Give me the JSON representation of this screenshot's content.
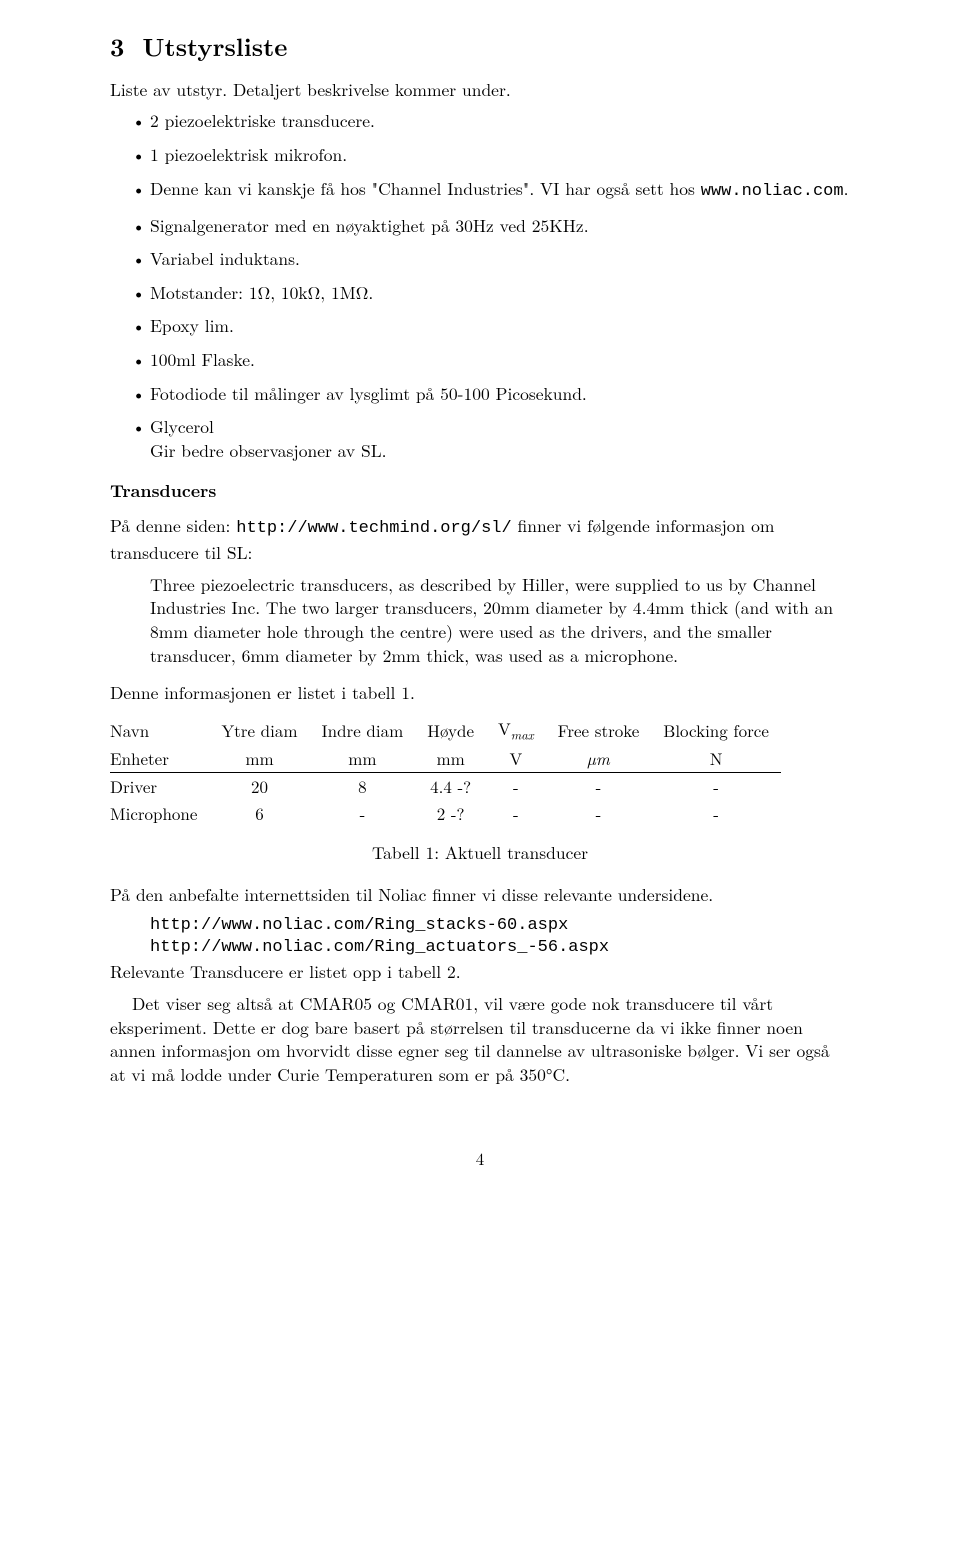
{
  "section": {
    "number": "3",
    "title": "Utstyrsliste"
  },
  "intro": "Liste av utstyr. Detaljert beskrivelse kommer under.",
  "bullets": [
    {
      "text": "2 piezoelektriske transducere."
    },
    {
      "text": "1 piezoelektrisk mikrofon."
    },
    {
      "text_a": "Denne kan vi kanskje få hos \"Channel Industries\". VI har også sett hos ",
      "code": "www.noliac.com",
      "text_b": "."
    },
    {
      "text": "Signalgenerator med en nøyaktighet på 30Hz ved 25KHz."
    },
    {
      "text": "Variabel induktans."
    },
    {
      "text": "Motstander: 1Ω, 10kΩ, 1MΩ."
    },
    {
      "text": "Epoxy lim."
    },
    {
      "text": "100ml Flaske."
    },
    {
      "text": "Fotodiode til målinger av lysglimt på 50-100 Picosekund."
    },
    {
      "text": "Glycerol",
      "sub": "Gir bedre observasjoner av SL."
    }
  ],
  "transducers": {
    "heading": "Transducers",
    "p1_a": "På denne siden: ",
    "p1_code": "http://www.techmind.org/sl/",
    "p1_b": " finner vi følgende informasjon om transducere til SL:",
    "quote": "Three piezoelectric transducers, as described by Hiller, were supplied to us by Channel Industries Inc. The two larger transducers, 20mm diameter by 4.4mm thick (and with an 8mm diameter hole through the centre) were used as the drivers, and the smaller transducer, 6mm diameter by 2mm thick, was used as a microphone.",
    "p2": "Denne informasjonen er listet i tabell 1."
  },
  "table": {
    "headers": [
      "Navn",
      "Ytre diam",
      "Indre diam",
      "Høyde",
      "V",
      "Free stroke",
      "Blocking force"
    ],
    "header_vmax_label": "max",
    "units": [
      "Enheter",
      "mm",
      "mm",
      "mm",
      "V",
      "µm",
      "N"
    ],
    "rows": [
      [
        "Driver",
        "20",
        "8",
        "4.4 -?",
        "-",
        "-",
        "-"
      ],
      [
        "Microphone",
        "6",
        "-",
        "2 -?",
        "-",
        "-",
        "-"
      ]
    ],
    "caption": "Tabell 1: Aktuell transducer"
  },
  "after": {
    "p1": "På den anbefalte internettsiden til Noliac finner vi disse relevante undersidene.",
    "url1": "http://www.noliac.com/Ring_stacks-60.aspx",
    "url2": "http://www.noliac.com/Ring_actuators_-56.aspx",
    "p2": "Relevante Transducere er listet opp i tabell 2.",
    "p3": "Det viser seg altså at CMAR05 og CMAR01, vil være gode nok transducere til vårt eksperiment. Dette er dog bare basert på størrelsen til transducerne da vi ikke finner noen annen informasjon om hvorvidt disse egner seg til dannelse av ultrasoniske bølger. Vi ser også at vi må lodde under Curie Temperaturen som er på 350°C."
  },
  "pagenum": "4"
}
